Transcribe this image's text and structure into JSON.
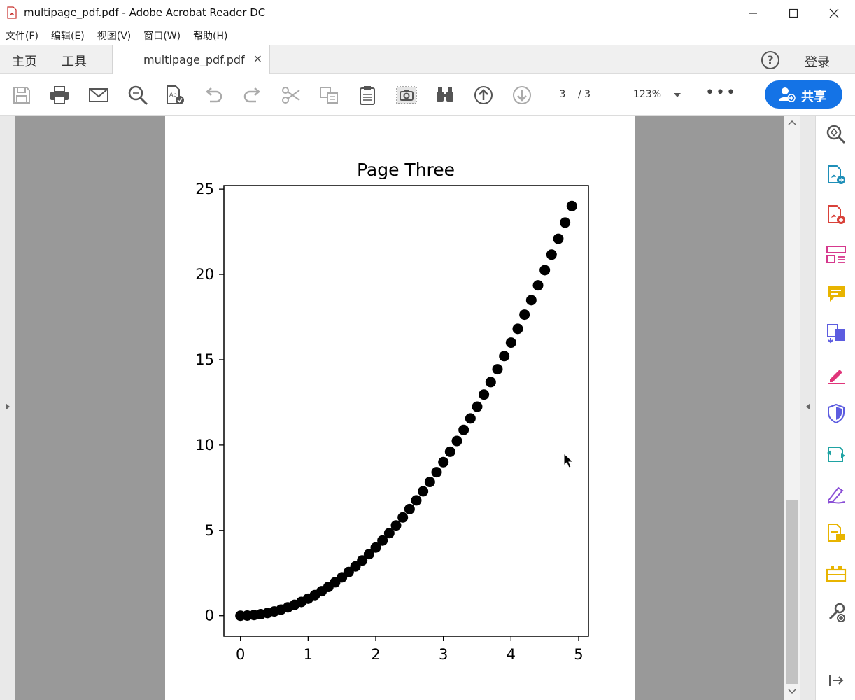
{
  "window": {
    "title": "multipage_pdf.pdf - Adobe Acrobat Reader DC"
  },
  "menu": {
    "items": [
      "文件(F)",
      "编辑(E)",
      "视图(V)",
      "窗口(W)",
      "帮助(H)"
    ]
  },
  "tabs": {
    "home_label": "主页",
    "tools_label": "工具",
    "document_label": "multipage_pdf.pdf",
    "close_label": "×",
    "help_label": "?",
    "login_label": "登录"
  },
  "toolbar": {
    "current_page": "3",
    "total_pages": "/ 3",
    "zoom": "123%",
    "more_label": "•••",
    "share_label": "共享"
  },
  "chart_data": {
    "type": "scatter",
    "title": "Page Three",
    "xlabel": "",
    "ylabel": "",
    "xlim": [
      -0.245,
      5.145
    ],
    "ylim": [
      -1.2005,
      25.2105
    ],
    "xticks": [
      0,
      1,
      2,
      3,
      4,
      5
    ],
    "yticks": [
      0,
      5,
      10,
      15,
      20,
      25
    ],
    "grid": false,
    "series": [
      {
        "color": "#000000",
        "x": [
          0.0,
          0.1,
          0.2,
          0.3,
          0.4,
          0.5,
          0.6,
          0.7,
          0.8,
          0.9,
          1.0,
          1.1,
          1.2,
          1.3,
          1.4,
          1.5,
          1.6,
          1.7,
          1.8,
          1.9,
          2.0,
          2.1,
          2.2,
          2.3,
          2.4,
          2.5,
          2.6,
          2.7,
          2.8,
          2.9,
          3.0,
          3.1,
          3.2,
          3.3,
          3.4,
          3.5,
          3.6,
          3.7,
          3.8,
          3.9,
          4.0,
          4.1,
          4.2,
          4.3,
          4.4,
          4.5,
          4.6,
          4.7,
          4.8,
          4.9
        ],
        "y": [
          0.0,
          0.01,
          0.04,
          0.09,
          0.16,
          0.25,
          0.36,
          0.49,
          0.64,
          0.81,
          1.0,
          1.21,
          1.44,
          1.69,
          1.96,
          2.25,
          2.56,
          2.89,
          3.24,
          3.61,
          4.0,
          4.41,
          4.84,
          5.29,
          5.76,
          6.25,
          6.76,
          7.29,
          7.84,
          8.41,
          9.0,
          9.61,
          10.24,
          10.89,
          11.56,
          12.25,
          12.96,
          13.69,
          14.44,
          15.21,
          16.0,
          16.81,
          17.64,
          18.49,
          19.36,
          20.25,
          21.16,
          22.09,
          23.04,
          24.01
        ]
      }
    ]
  }
}
